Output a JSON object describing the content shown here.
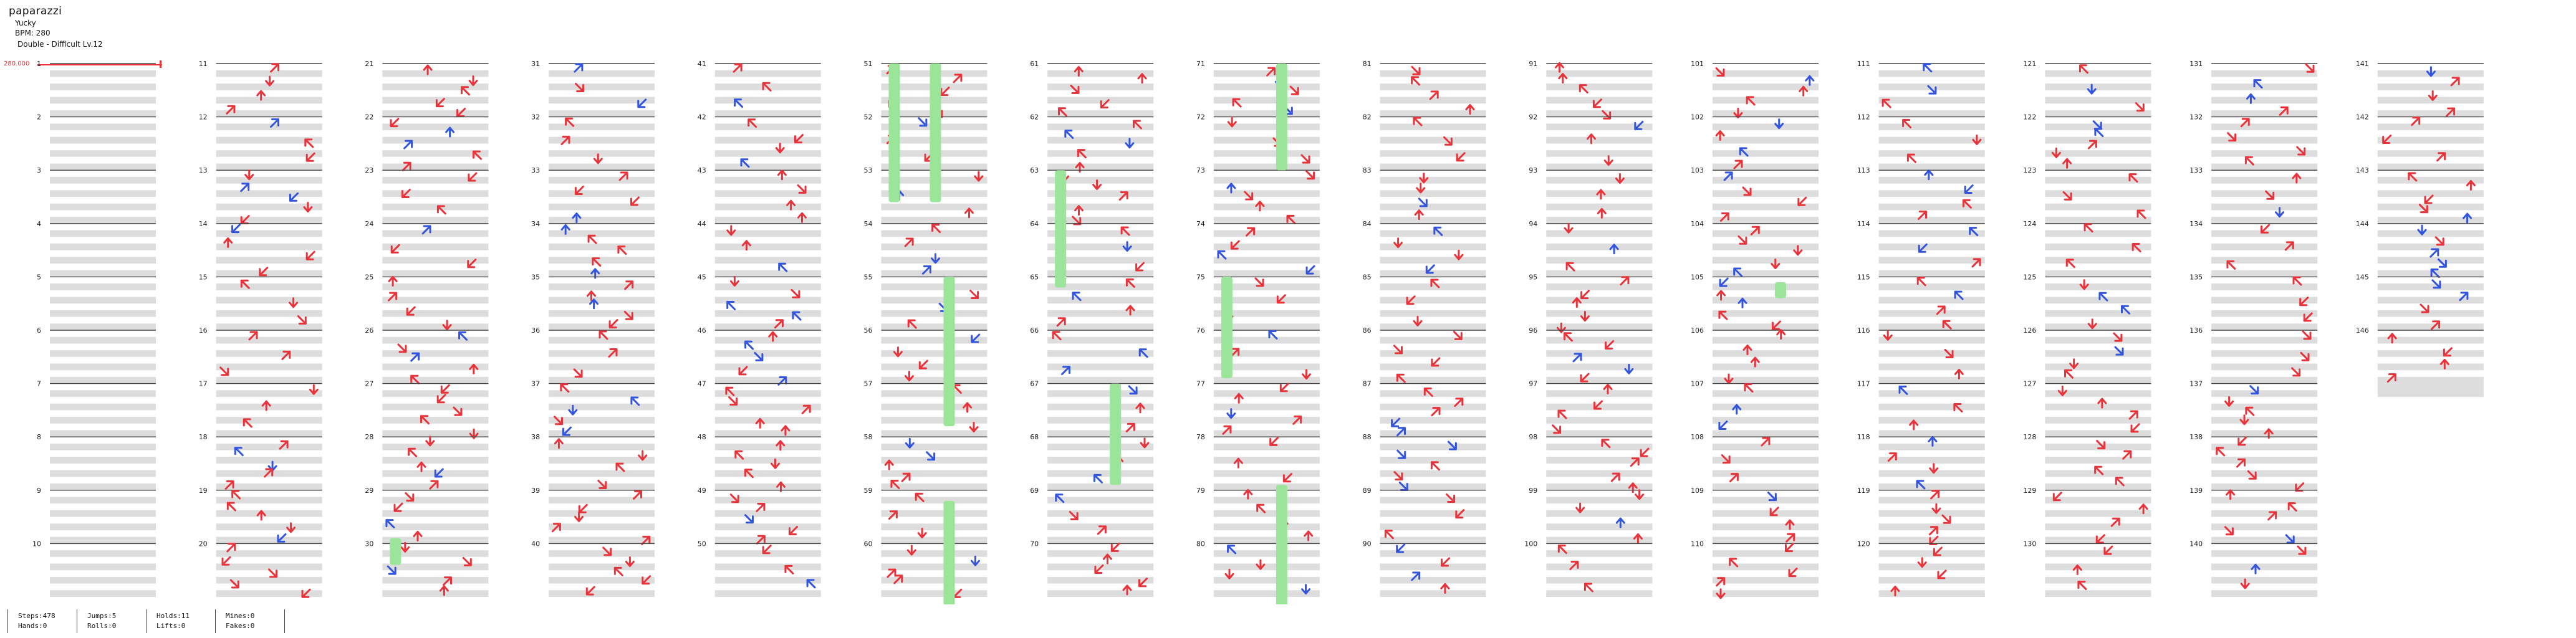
{
  "song": {
    "title": "paparazzi",
    "artist": "Yucky",
    "bpm_label": "BPM: 280",
    "difficulty_label": "Double - Difficult Lv.12",
    "bpm_marker": "280.000"
  },
  "stats": {
    "steps": "Steps:478",
    "hands": "Hands:0",
    "jumps": "Jumps:5",
    "rolls": "Rolls:0",
    "holds": "Holds:11",
    "lifts": "Lifts:0",
    "mines": "Mines:0",
    "fakes": "Fakes:0"
  },
  "colors": {
    "red_arrow": "#e8333b",
    "blue_arrow": "#3355dd",
    "hold_green": "#9be59b",
    "stripe": "#dddddd"
  },
  "chart_data": {
    "type": "table",
    "measures_total": 146,
    "measures_per_column": 10,
    "panels_per_row": 8,
    "note_glyph_names": {
      "upleft": "up-left-arrow-icon",
      "upright": "up-right-arrow-icon",
      "downleft": "down-left-arrow-icon",
      "downright": "down-right-arrow-icon",
      "up": "up-arrow-icon",
      "down": "down-arrow-icon"
    }
  }
}
